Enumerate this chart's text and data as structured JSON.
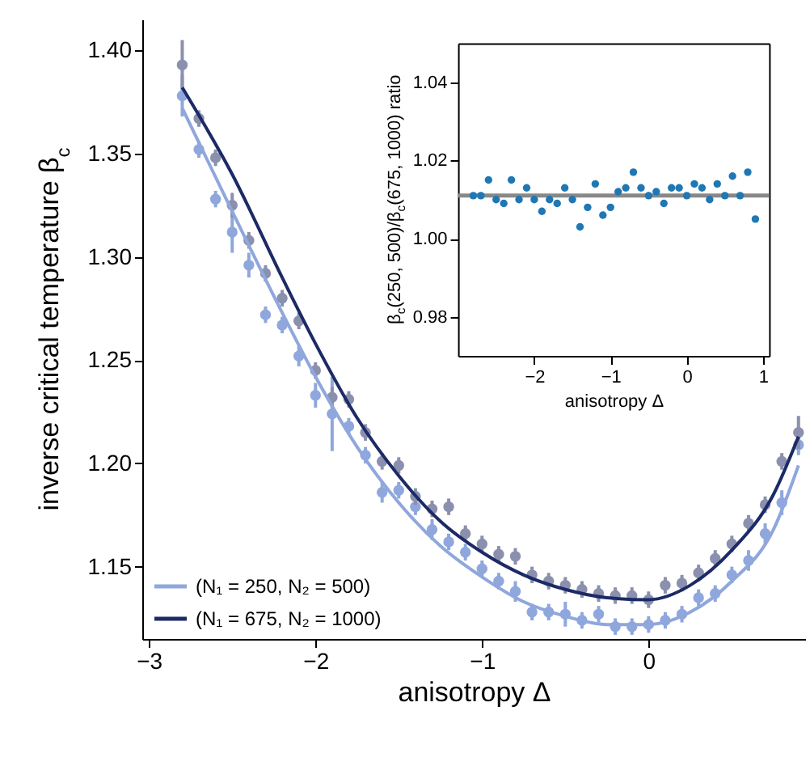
{
  "chart_data": [
    {
      "type": "scatter",
      "xlabel": "anisotropy Δ",
      "ylabel": "inverse critical temperature β$_{c}$",
      "x": [
        -2.8,
        -2.7,
        -2.6,
        -2.5,
        -2.4,
        -2.3,
        -2.2,
        -2.1,
        -2.0,
        -1.9,
        -1.8,
        -1.7,
        -1.6,
        -1.5,
        -1.4,
        -1.3,
        -1.2,
        -1.1,
        -1.0,
        -0.9,
        -0.8,
        -0.7,
        -0.6,
        -0.5,
        -0.4,
        -0.3,
        -0.2,
        -0.1,
        0.0,
        0.1,
        0.2,
        0.3,
        0.4,
        0.5,
        0.6,
        0.7,
        0.8,
        0.9
      ],
      "series": [
        {
          "type": "scatter",
          "color": "#8a90ad",
          "values": [
            1.393,
            1.367,
            1.348,
            1.325,
            1.308,
            1.292,
            1.28,
            1.269,
            1.245,
            1.232,
            1.231,
            1.215,
            1.201,
            1.199,
            1.184,
            1.178,
            1.179,
            1.166,
            1.161,
            1.156,
            1.155,
            1.146,
            1.143,
            1.141,
            1.139,
            1.137,
            1.136,
            1.136,
            1.134,
            1.141,
            1.142,
            1.147,
            1.154,
            1.161,
            1.171,
            1.18,
            1.201,
            1.215
          ],
          "errors": [
            0.012,
            0.004,
            0.004,
            0.006,
            0.004,
            0.004,
            0.004,
            0.004,
            0.004,
            0.005,
            0.004,
            0.004,
            0.004,
            0.004,
            0.004,
            0.004,
            0.004,
            0.004,
            0.004,
            0.004,
            0.004,
            0.004,
            0.004,
            0.004,
            0.004,
            0.004,
            0.004,
            0.004,
            0.004,
            0.004,
            0.004,
            0.004,
            0.004,
            0.004,
            0.004,
            0.004,
            0.004,
            0.008
          ]
        },
        {
          "type": "scatter",
          "color": "#8fa7dc",
          "values": [
            1.378,
            1.352,
            1.328,
            1.312,
            1.296,
            1.272,
            1.267,
            1.252,
            1.233,
            1.224,
            1.218,
            1.204,
            1.186,
            1.187,
            1.179,
            1.168,
            1.162,
            1.157,
            1.149,
            1.143,
            1.138,
            1.128,
            1.128,
            1.127,
            1.124,
            1.127,
            1.121,
            1.121,
            1.122,
            1.124,
            1.127,
            1.135,
            1.137,
            1.146,
            1.153,
            1.166,
            1.181,
            1.209
          ],
          "errors": [
            0.01,
            0.004,
            0.004,
            0.01,
            0.006,
            0.004,
            0.004,
            0.005,
            0.006,
            0.018,
            0.004,
            0.004,
            0.005,
            0.004,
            0.004,
            0.005,
            0.004,
            0.004,
            0.004,
            0.004,
            0.005,
            0.004,
            0.004,
            0.006,
            0.004,
            0.004,
            0.004,
            0.004,
            0.004,
            0.004,
            0.004,
            0.004,
            0.004,
            0.004,
            0.005,
            0.005,
            0.006,
            0.005
          ]
        },
        {
          "type": "line",
          "marker": "none",
          "name": "(N₁ = 250, N₂ = 500)",
          "color": "#8fa7dc",
          "x": [
            -2.8,
            -2.5,
            -2.2,
            -2.0,
            -1.75,
            -1.5,
            -1.25,
            -1.0,
            -0.75,
            -0.5,
            -0.25,
            0.0,
            0.25,
            0.5,
            0.75,
            0.9
          ],
          "values": [
            1.372,
            1.322,
            1.273,
            1.242,
            1.208,
            1.181,
            1.16,
            1.145,
            1.133,
            1.126,
            1.122,
            1.122,
            1.128,
            1.143,
            1.168,
            1.199
          ]
        },
        {
          "type": "line",
          "marker": "none",
          "name": "(N₁ = 675, N₂ = 1000)",
          "color": "#1c2a66",
          "x": [
            -2.8,
            -2.5,
            -2.2,
            -2.0,
            -1.75,
            -1.5,
            -1.25,
            -1.0,
            -0.75,
            -0.5,
            -0.25,
            0.0,
            0.25,
            0.5,
            0.75,
            0.9
          ],
          "values": [
            1.382,
            1.34,
            1.29,
            1.258,
            1.222,
            1.194,
            1.172,
            1.157,
            1.146,
            1.139,
            1.135,
            1.134,
            1.141,
            1.158,
            1.185,
            1.213
          ]
        }
      ],
      "xlim": [
        -3.04,
        0.94
      ],
      "ylim": [
        1.115,
        1.415
      ],
      "xticks": [
        -3,
        -2,
        -1,
        0
      ],
      "yticks": [
        1.15,
        {
          "value": 1.2,
          "label": "1.20"
        },
        1.25,
        {
          "value": 1.3,
          "label": "1.30"
        },
        1.35,
        {
          "value": 1.4,
          "label": "1.40"
        }
      ],
      "marker": "circle",
      "legend": "bottom left",
      "grid": false
    },
    {
      "type": "scatter",
      "xlabel": "anisotropy Δ",
      "ylabel": "β$_{c}$(250, 500)/β$_{c}$(675, 1000) ratio",
      "x": [
        -2.8,
        -2.7,
        -2.6,
        -2.5,
        -2.4,
        -2.3,
        -2.2,
        -2.1,
        -2.0,
        -1.9,
        -1.8,
        -1.7,
        -1.6,
        -1.5,
        -1.4,
        -1.3,
        -1.2,
        -1.1,
        -1.0,
        -0.9,
        -0.8,
        -0.7,
        -0.6,
        -0.5,
        -0.4,
        -0.3,
        -0.2,
        -0.1,
        0.0,
        0.1,
        0.2,
        0.3,
        0.4,
        0.5,
        0.6,
        0.7,
        0.8,
        0.9
      ],
      "series": [
        {
          "color": "#1f77b4",
          "values": [
            1.011,
            1.011,
            1.015,
            1.01,
            1.009,
            1.015,
            1.01,
            1.013,
            1.01,
            1.007,
            1.01,
            1.009,
            1.013,
            1.01,
            1.003,
            1.008,
            1.014,
            1.006,
            1.008,
            1.012,
            1.013,
            1.017,
            1.013,
            1.011,
            1.012,
            1.009,
            1.013,
            1.013,
            1.011,
            1.014,
            1.013,
            1.01,
            1.014,
            1.011,
            1.016,
            1.011,
            1.017,
            1.005
          ]
        }
      ],
      "ref_lines": [
        {
          "axis": "y",
          "value": 1.011,
          "color": "#888888"
        }
      ],
      "xlim": [
        -3.0,
        1.08
      ],
      "ylim": [
        0.97,
        1.05
      ],
      "xticks": [
        -2,
        -1,
        0,
        1
      ],
      "yticks": [
        0.98,
        {
          "value": 1.0,
          "label": "1.00"
        },
        1.02,
        1.04
      ],
      "marker": "circle",
      "grid": false
    }
  ]
}
